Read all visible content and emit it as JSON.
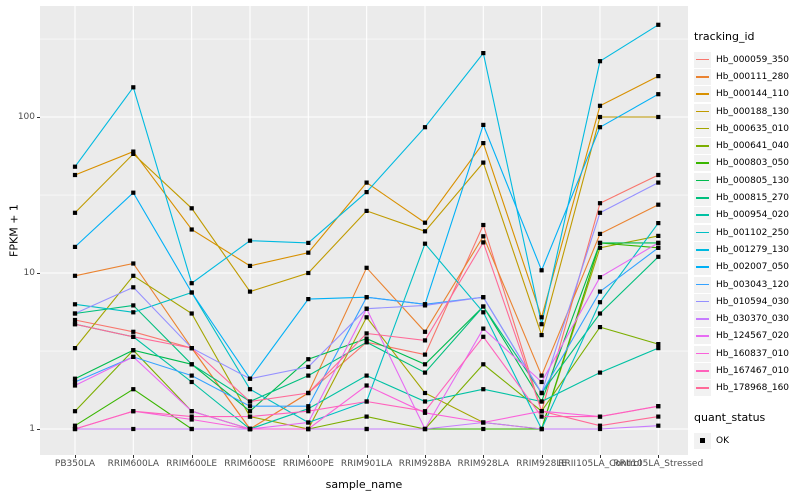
{
  "chart_data": {
    "type": "line",
    "title": "",
    "xlabel": "sample_name",
    "ylabel": "FPKM + 1",
    "panel_background": "#EBEBEB",
    "gridline_color": "#FFFFFF",
    "point_marker": "black-square",
    "x_categories": [
      "PB350LA",
      "RRIM600LA",
      "RRIM600LE",
      "RRIM600SE",
      "RRIM600PE",
      "RRIM901LA",
      "RRIM928BA",
      "RRIM928LA",
      "RRIM928LE",
      "RRII105LA_Control",
      "RRII105LA_Stressed"
    ],
    "y_axis": {
      "scale": "log10",
      "tick_labels": [
        "1",
        "10",
        "100"
      ],
      "major_ticks": [
        1,
        10,
        100
      ],
      "minor_gridlines": [
        3.16,
        31.6,
        316
      ],
      "range": [
        1,
        500
      ]
    },
    "legend_title": "tracking_id",
    "quant_legend": {
      "title": "quant_status",
      "items": [
        {
          "label": "OK",
          "marker": "black-square"
        }
      ]
    },
    "series": [
      {
        "name": "Hb_000059_350",
        "color": "#F8766D",
        "values": [
          5.0,
          4.2,
          3.3,
          1.0,
          1.7,
          3.6,
          3.0,
          20.3,
          1.3,
          28,
          42.5
        ]
      },
      {
        "name": "Hb_000111_280",
        "color": "#EA8331",
        "values": [
          9.6,
          11.5,
          3.3,
          1.0,
          1.7,
          10.8,
          4.2,
          17.2,
          2.2,
          17.8,
          27.4
        ]
      },
      {
        "name": "Hb_000144_110",
        "color": "#D89000",
        "values": [
          42.5,
          60,
          19,
          11.1,
          13.5,
          38,
          21,
          68,
          5.2,
          118,
          183
        ]
      },
      {
        "name": "Hb_000188_130",
        "color": "#C09B00",
        "values": [
          24.3,
          58,
          26,
          7.6,
          10.0,
          25,
          18.5,
          51,
          4.0,
          100,
          100
        ]
      },
      {
        "name": "Hb_000635_010",
        "color": "#A3A500",
        "values": [
          3.3,
          9.6,
          5.5,
          1.2,
          1.0,
          5.2,
          1.7,
          1.1,
          1.0,
          14.5,
          17.3
        ]
      },
      {
        "name": "Hb_000641_040",
        "color": "#7CAE00",
        "values": [
          1.3,
          3.2,
          1.3,
          1.0,
          1.0,
          1.2,
          1.0,
          2.6,
          1.3,
          4.5,
          3.5
        ]
      },
      {
        "name": "Hb_000803_050",
        "color": "#39B600",
        "values": [
          1.05,
          1.8,
          1.0,
          1.0,
          1.0,
          1.0,
          1.0,
          1.0,
          1.0,
          15.6,
          14.5
        ]
      },
      {
        "name": "Hb_000805_130",
        "color": "#00BB4E",
        "values": [
          2.1,
          3.2,
          2.6,
          1.3,
          2.8,
          3.8,
          2.6,
          6.1,
          1.5,
          15.6,
          15.6
        ]
      },
      {
        "name": "Hb_000815_270",
        "color": "#00BF7D",
        "values": [
          5.5,
          6.2,
          2.6,
          1.5,
          2.2,
          3.6,
          2.3,
          6.1,
          1.7,
          5.5,
          12.7
        ]
      },
      {
        "name": "Hb_000954_020",
        "color": "#00C1A3",
        "values": [
          4.7,
          3.9,
          2.0,
          1.0,
          1.35,
          2.2,
          1.5,
          1.8,
          1.5,
          2.3,
          3.3
        ]
      },
      {
        "name": "Hb_001102_250",
        "color": "#00BFC4",
        "values": [
          6.3,
          5.6,
          7.5,
          1.8,
          1.1,
          1.5,
          15.4,
          5.6,
          1.0,
          6.5,
          20.9
        ]
      },
      {
        "name": "Hb_001279_130",
        "color": "#00BAE0",
        "values": [
          48,
          155,
          8.6,
          16.1,
          15.6,
          33,
          86,
          257,
          4.7,
          228,
          390
        ]
      },
      {
        "name": "Hb_002007_050",
        "color": "#00B0F6",
        "values": [
          14.7,
          32.7,
          7.5,
          2.1,
          6.8,
          7.0,
          6.3,
          89,
          10.4,
          86,
          140
        ]
      },
      {
        "name": "Hb_003043_120",
        "color": "#35A2FF",
        "values": [
          2.0,
          2.9,
          2.2,
          1.4,
          1.4,
          7.0,
          6.3,
          7.0,
          1.7,
          7.6,
          14.5
        ]
      },
      {
        "name": "Hb_010594_030",
        "color": "#9590FF",
        "values": [
          5.5,
          8.1,
          3.3,
          2.1,
          2.5,
          5.9,
          6.2,
          7.0,
          1.7,
          24.3,
          38
        ]
      },
      {
        "name": "Hb_030370_030",
        "color": "#C77CFF",
        "values": [
          1.0,
          1.0,
          1.0,
          1.0,
          1.0,
          1.0,
          1.0,
          1.1,
          1.0,
          1.0,
          1.05
        ]
      },
      {
        "name": "Hb_124567_020",
        "color": "#E76BF3",
        "values": [
          1.9,
          2.9,
          1.3,
          1.0,
          1.1,
          5.9,
          1.0,
          4.4,
          2.0,
          9.4,
          15.6
        ]
      },
      {
        "name": "Hb_160837_010",
        "color": "#FA62DB",
        "values": [
          1.0,
          1.3,
          1.15,
          1.0,
          1.0,
          1.9,
          1.27,
          1.1,
          1.3,
          1.2,
          1.4
        ]
      },
      {
        "name": "Hb_167467_010",
        "color": "#FF62BC",
        "values": [
          1.0,
          1.3,
          1.2,
          1.2,
          1.3,
          1.5,
          1.3,
          3.9,
          1.2,
          1.2,
          1.4
        ]
      },
      {
        "name": "Hb_178968_160",
        "color": "#FF6A98",
        "values": [
          4.7,
          3.9,
          3.3,
          1.5,
          1.7,
          4.1,
          3.7,
          15.7,
          1.3,
          1.05,
          1.2
        ]
      }
    ]
  }
}
